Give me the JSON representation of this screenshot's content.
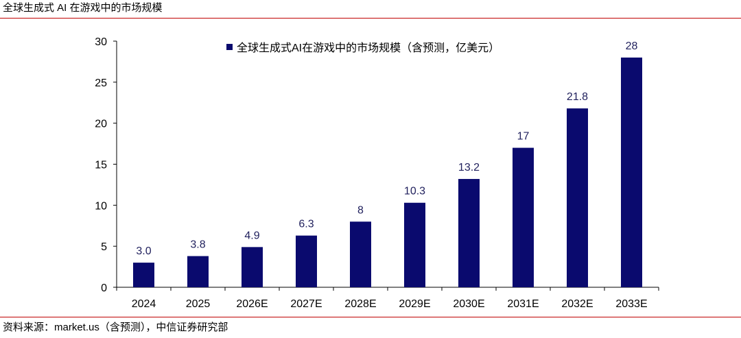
{
  "header": {
    "title": "全球生成式 AI 在游戏中的市场规模"
  },
  "footer": {
    "source": "资料来源：market.us（含预测），中信证券研究部"
  },
  "colors": {
    "bar": "#0a0a6e",
    "rule": "#c00000",
    "axis": "#000000"
  },
  "chart_data": {
    "type": "bar",
    "categories": [
      "2024",
      "2025",
      "2026E",
      "2027E",
      "2028E",
      "2029E",
      "2030E",
      "2031E",
      "2032E",
      "2033E"
    ],
    "series": [
      {
        "name": "全球生成式AI在游戏中的市场规模（含预测，亿美元）",
        "values": [
          3.0,
          3.8,
          4.9,
          6.3,
          8,
          10.3,
          13.2,
          17,
          21.8,
          28
        ],
        "labels": [
          "3.0",
          "3.8",
          "4.9",
          "6.3",
          "8",
          "10.3",
          "13.2",
          "17",
          "21.8",
          "28"
        ]
      }
    ],
    "ylim": [
      0,
      30
    ],
    "yticks": [
      0,
      5,
      10,
      15,
      20,
      25,
      30
    ],
    "legend": "top-center",
    "grid": false
  }
}
